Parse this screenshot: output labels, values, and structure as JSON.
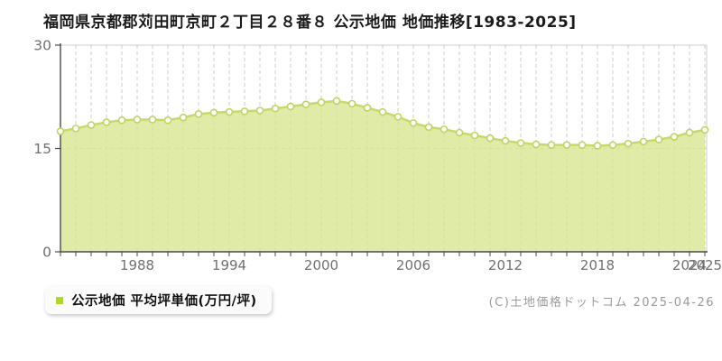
{
  "page": {
    "title": "福岡県京都郡苅田町京町２丁目２８番８ 公示地価 地価推移[1983-2025]",
    "copyright": "(C)土地価格ドットコム 2025-04-26"
  },
  "legend": {
    "label": "公示地価 平均坪単価(万円/坪)",
    "marker_color": "#b2d62c"
  },
  "chart_data": {
    "type": "area",
    "title": "福岡県京都郡苅田町京町２丁目２８番８ 公示地価 地価推移[1983-2025]",
    "xlabel": "",
    "ylabel": "",
    "x": [
      1983,
      1984,
      1985,
      1986,
      1987,
      1988,
      1989,
      1990,
      1991,
      1992,
      1993,
      1994,
      1995,
      1996,
      1997,
      1998,
      1999,
      2000,
      2001,
      2002,
      2003,
      2004,
      2005,
      2006,
      2007,
      2008,
      2009,
      2010,
      2011,
      2012,
      2013,
      2014,
      2015,
      2016,
      2017,
      2018,
      2019,
      2020,
      2021,
      2022,
      2023,
      2024,
      2025
    ],
    "series": [
      {
        "name": "公示地価 平均坪単価(万円/坪)",
        "values": [
          17.5,
          17.9,
          18.4,
          18.8,
          19.1,
          19.2,
          19.2,
          19.1,
          19.5,
          20.0,
          20.2,
          20.3,
          20.4,
          20.5,
          20.8,
          21.1,
          21.4,
          21.7,
          21.9,
          21.5,
          20.9,
          20.3,
          19.6,
          18.7,
          18.1,
          17.8,
          17.3,
          16.9,
          16.5,
          16.1,
          15.8,
          15.6,
          15.5,
          15.5,
          15.5,
          15.4,
          15.5,
          15.7,
          16.0,
          16.3,
          16.7,
          17.3,
          17.7
        ]
      }
    ],
    "ylim": [
      0,
      30
    ],
    "yticks": [
      0,
      15,
      30
    ],
    "xtick_labeled_years": [
      1988,
      1994,
      2000,
      2006,
      2012,
      2018,
      2024,
      2025
    ],
    "grid": true,
    "legend_position": "bottom-left",
    "colors": {
      "line": "#c4d96e",
      "fill": "#d9e795",
      "marker_fill": "#ffffff",
      "marker_stroke": "#bfd55f",
      "grid": "#cbcbcb",
      "plot_border": "#cccccc",
      "axis": "#4a4a4a",
      "tick_text": "#707070"
    }
  }
}
